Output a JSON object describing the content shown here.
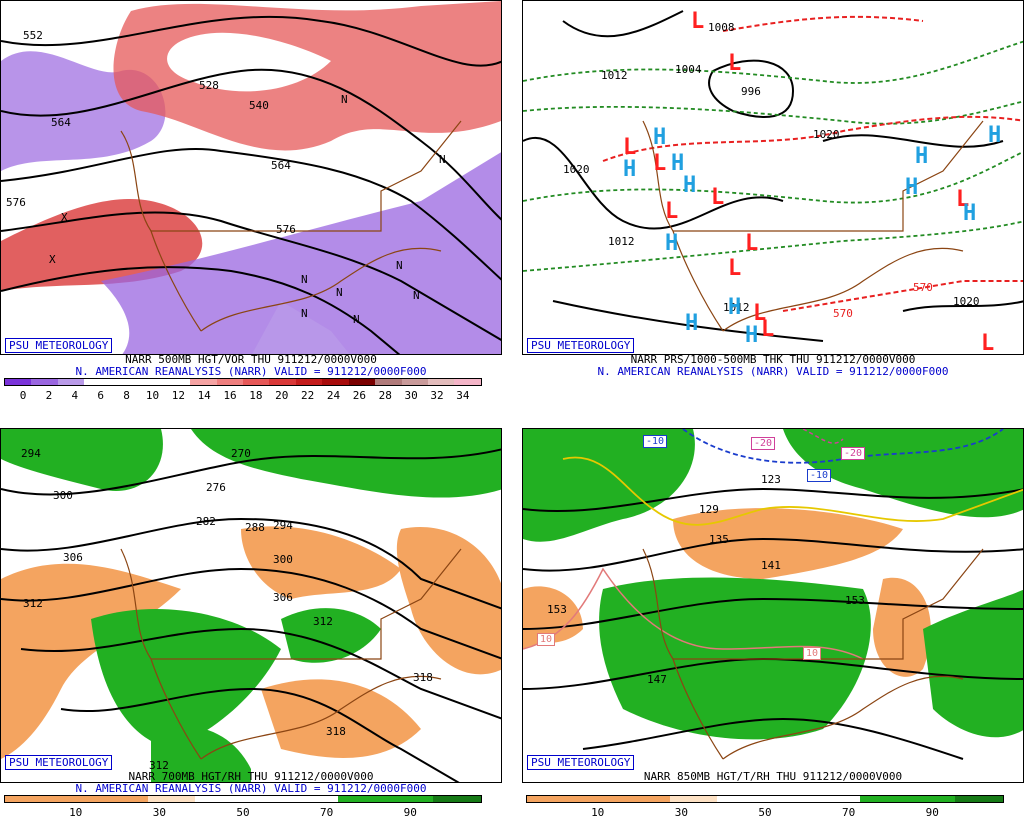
{
  "badge": "PSU METEOROLOGY",
  "panels": {
    "p1": {
      "caption1": "NARR 500MB HGT/VOR THU 911212/0000V000",
      "caption2": "N. AMERICAN REANALYSIS (NARR) VALID = 911212/0000F000",
      "colorbar_labels": [
        "0",
        "2",
        "4",
        "6",
        "8",
        "10",
        "12",
        "14",
        "16",
        "18",
        "20",
        "22",
        "24",
        "26",
        "28",
        "30",
        "32",
        "34"
      ],
      "colorbar_colors": [
        "#7a33d9",
        "#9a66e0",
        "#b99ae8",
        "#ffffff",
        "#ffffff",
        "#ffffff",
        "#ffffff",
        "#f5a3a3",
        "#ef7f7f",
        "#e65858",
        "#d93838",
        "#c41c1c",
        "#a80c0c",
        "#7a0000",
        "#b07a7a",
        "#c99a9a",
        "#e3bcbc",
        "#f4b5c8"
      ],
      "contour_labels": [
        "552",
        "528",
        "540",
        "564",
        "576",
        "576",
        "564",
        "N",
        "N",
        "N",
        "N",
        "N",
        "N",
        "N",
        "N",
        "X",
        "X"
      ]
    },
    "p2": {
      "caption1": "NARR PRS/1000-500MB THK THU 911212/0000V000",
      "caption2": "N. AMERICAN REANALYSIS (NARR) VALID = 911212/0000F000",
      "contour_labels": [
        "1008",
        "1012",
        "1004",
        "996",
        "1020",
        "1020",
        "1012",
        "1012",
        "570",
        "570",
        "1020"
      ],
      "symbols": [
        "L",
        "H",
        "L",
        "H",
        "L",
        "H",
        "L",
        "H",
        "L",
        "H",
        "L",
        "H",
        "L",
        "H",
        "L",
        "H",
        "L",
        "H",
        "L",
        "H",
        "L",
        "H",
        "L",
        "H"
      ]
    },
    "p3": {
      "caption1": "NARR 700MB HGT/RH THU 911212/0000V000",
      "caption2": "N. AMERICAN REANALYSIS (NARR) VALID = 911212/0000F000",
      "contour_labels": [
        "294",
        "300",
        "306",
        "312",
        "270",
        "276",
        "282",
        "288",
        "294",
        "300",
        "306",
        "312",
        "318",
        "318",
        "312"
      ],
      "colorbar_labels": [
        "10",
        "30",
        "50",
        "70",
        "90"
      ]
    },
    "p4": {
      "caption1": "NARR 850MB HGT/T/RH THU 911212/0000V000",
      "contour_labels": [
        "129",
        "123",
        "135",
        "141",
        "147",
        "153",
        "153",
        "10",
        "10",
        "-10",
        "-20",
        "-20",
        "-10"
      ],
      "colorbar_labels": [
        "10",
        "30",
        "50",
        "70",
        "90"
      ]
    }
  },
  "colors": {
    "coast": "#8b4513",
    "contour": "#000000",
    "rh_dry": "#f4a460",
    "rh_moist": "#22b022",
    "low": "#ff2020",
    "high": "#20a0e0"
  }
}
